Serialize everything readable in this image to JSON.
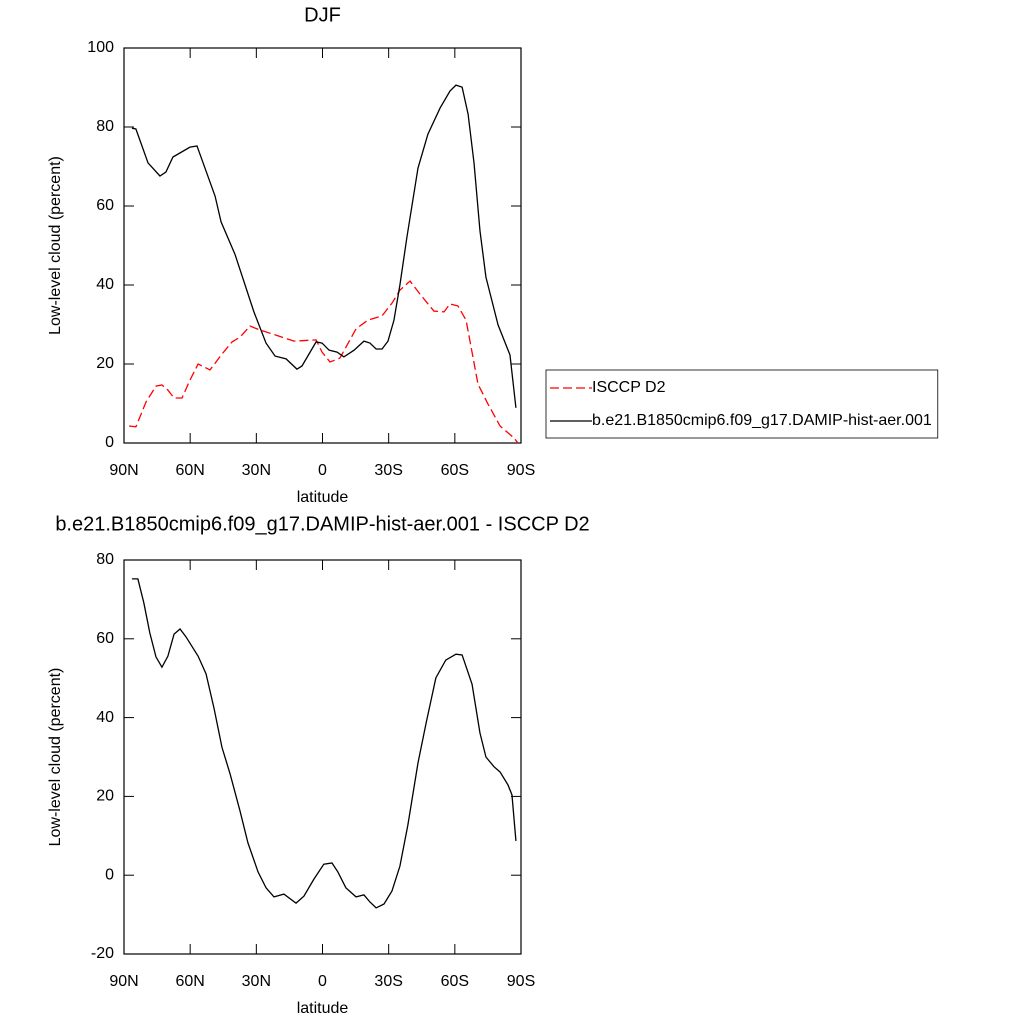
{
  "chart_data": [
    {
      "type": "line",
      "title": "DJF",
      "x_label": "latitude",
      "y_label": "Low-level cloud (percent)",
      "xlim": [
        90,
        -90
      ],
      "xticks": [
        {
          "value": 90,
          "label": "90N"
        },
        {
          "value": 60,
          "label": "60N"
        },
        {
          "value": 30,
          "label": "30N"
        },
        0,
        {
          "value": -30,
          "label": "30S"
        },
        {
          "value": -60,
          "label": "60S"
        },
        {
          "value": -90,
          "label": "90S"
        }
      ],
      "ylim": [
        0,
        100
      ],
      "yticks": [
        0,
        20,
        40,
        60,
        80,
        100
      ],
      "legend": "right",
      "series": [
        {
          "name": "ISCCP D2",
          "color": "#ff0000",
          "line_style": "dashed",
          "x": [
            87.7,
            84.6,
            80,
            75.5,
            72.8,
            70.1,
            67.3,
            63.7,
            60.1,
            56.4,
            51,
            45.6,
            41,
            37.4,
            32.9,
            28.3,
            21.1,
            12.9,
            2.9,
            0.2,
            -3.4,
            -7.9,
            -15.2,
            -20.6,
            -27,
            -31.5,
            -35.1,
            -39.7,
            -44.2,
            -50.5,
            -55.1,
            -57.8,
            -61.4,
            -65.1,
            -70.5,
            -75,
            -80.5,
            -86.8,
            -88.6
          ],
          "values": [
            4.3,
            4.1,
            10.4,
            14.4,
            14.7,
            13.4,
            11.4,
            11.4,
            15.9,
            20,
            18.5,
            22.5,
            25.6,
            26.8,
            29.6,
            28.6,
            27.3,
            25.8,
            26.1,
            23,
            20.5,
            21.5,
            28.9,
            31.1,
            32.2,
            35.4,
            38.7,
            41,
            37.7,
            33.4,
            33.2,
            35.2,
            34.7,
            31.1,
            14.9,
            9.9,
            4.3,
            1.3,
            0
          ]
        },
        {
          "name": "b.e21.B1850cmip6.f09_g17.DAMIP-hist-aer.001",
          "color": "#000000",
          "line_style": "solid",
          "x": [
            86.4,
            84.6,
            79.1,
            73.7,
            71,
            67.8,
            60.1,
            56.9,
            48.7,
            46,
            39.7,
            31.1,
            25.6,
            21.5,
            16.5,
            11.6,
            9.3,
            2.9,
            0.2,
            -3,
            -6.6,
            -9.7,
            -14.3,
            -18.8,
            -21.5,
            -24.3,
            -27,
            -29.7,
            -32.4,
            -35.1,
            -38.3,
            -43.3,
            -47.8,
            -53.3,
            -57.8,
            -60.5,
            -63.3,
            -66,
            -68.7,
            -71.4,
            -74.1,
            -79.6,
            -85,
            -87.7
          ],
          "values": [
            79.7,
            79.5,
            70.9,
            67.6,
            68.6,
            72.4,
            74.9,
            75.2,
            62.5,
            56,
            47.8,
            33.2,
            25.3,
            22,
            21.3,
            18.7,
            19.5,
            25.6,
            25.3,
            23.5,
            23,
            21.8,
            23.5,
            25.8,
            25.3,
            23.8,
            23.8,
            25.8,
            31.1,
            40,
            52.2,
            69.6,
            78.2,
            84.8,
            89.1,
            90.6,
            90.1,
            83.3,
            70.9,
            53.7,
            42,
            29.9,
            22.3,
            8.9
          ]
        }
      ]
    },
    {
      "type": "line",
      "title": "b.e21.B1850cmip6.f09_g17.DAMIP-hist-aer.001 - ISCCP D2",
      "x_label": "latitude",
      "y_label": "Low-level cloud (percent)",
      "xlim": [
        90,
        -90
      ],
      "xticks": [
        {
          "value": 90,
          "label": "90N"
        },
        {
          "value": 60,
          "label": "60N"
        },
        {
          "value": 30,
          "label": "30N"
        },
        0,
        {
          "value": -30,
          "label": "30S"
        },
        {
          "value": -60,
          "label": "60S"
        },
        {
          "value": -90,
          "label": "90S"
        }
      ],
      "ylim": [
        -20,
        80
      ],
      "yticks": [
        -20,
        0,
        20,
        40,
        60,
        80
      ],
      "series": [
        {
          "color": "#000000",
          "line_style": "solid",
          "x": [
            86.4,
            83.7,
            81,
            78.3,
            75.5,
            72.8,
            70.1,
            67.3,
            64.6,
            61.9,
            56.4,
            52.8,
            49.2,
            45.6,
            41.9,
            37.4,
            33.8,
            29.2,
            25.6,
            22,
            17.5,
            12,
            8.4,
            3.9,
            -0.6,
            -4.3,
            -7,
            -10.6,
            -15.2,
            -18.8,
            -21.5,
            -24.3,
            -27.9,
            -31.5,
            -35.1,
            -38.7,
            -43.3,
            -46.9,
            -51.4,
            -55.9,
            -60.5,
            -63.3,
            -67.8,
            -71.4,
            -74.1,
            -77.8,
            -80.5,
            -84.1,
            -85.9,
            -87.7
          ],
          "values": [
            75.2,
            75.2,
            69.1,
            61.5,
            55.4,
            52.8,
            55.6,
            61.2,
            62.5,
            60.5,
            55.6,
            51.1,
            42.4,
            32.5,
            25.7,
            16.3,
            8.2,
            0.8,
            -3.2,
            -5.5,
            -4.8,
            -7.1,
            -5.3,
            -1,
            2.8,
            3.1,
            0.8,
            -3.2,
            -5.5,
            -5,
            -6.8,
            -8.3,
            -7.3,
            -4,
            2.3,
            12.7,
            28.5,
            38.4,
            50.1,
            54.6,
            56.1,
            55.9,
            48.5,
            36.1,
            30,
            27.5,
            26.2,
            22.9,
            20.4,
            8.7
          ]
        }
      ]
    }
  ]
}
